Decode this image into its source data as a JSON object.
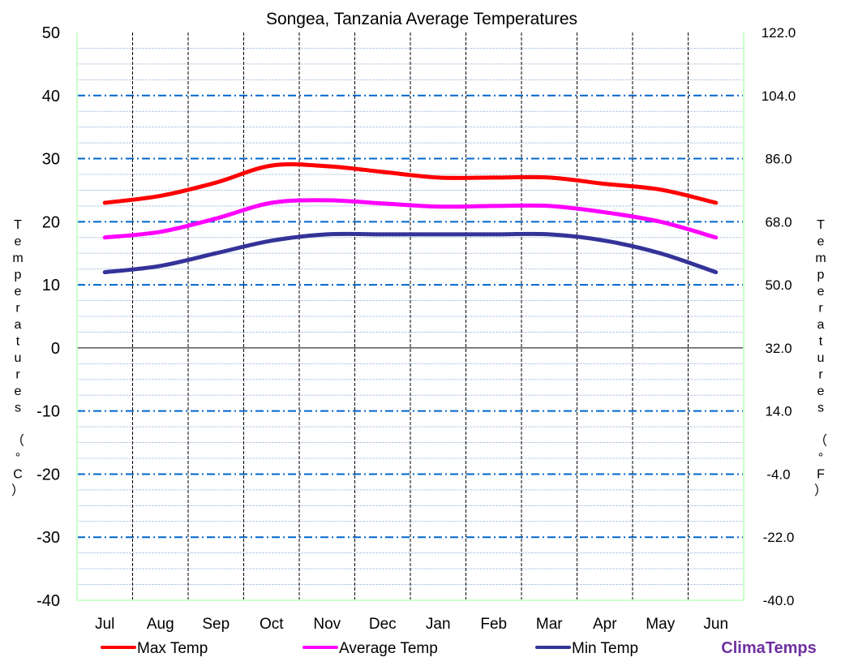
{
  "chart_data": {
    "type": "line",
    "title": "Songea, Tanzania Average Temperatures",
    "categories": [
      "Jul",
      "Aug",
      "Sep",
      "Oct",
      "Nov",
      "Dec",
      "Jan",
      "Feb",
      "Mar",
      "Apr",
      "May",
      "Jun"
    ],
    "series": [
      {
        "name": "Max Temp",
        "color": "#ff0000",
        "values": [
          23,
          24.1,
          26.2,
          28.9,
          28.8,
          27.9,
          27,
          27,
          27,
          26,
          25.1,
          23
        ]
      },
      {
        "name": "Average Temp",
        "color": "#ff00ff",
        "values": [
          17.5,
          18.4,
          20.5,
          23,
          23.4,
          22.9,
          22.4,
          22.5,
          22.5,
          21.5,
          20,
          17.5
        ]
      },
      {
        "name": "Min Temp",
        "color": "#333399",
        "values": [
          12,
          13,
          15,
          17,
          18,
          18,
          18,
          18,
          18,
          17,
          15,
          12
        ]
      }
    ],
    "ylabel_left": "Temperatures (°C)",
    "ylabel_right": "Temperatures (°F)",
    "ylim": [
      -40,
      50
    ],
    "yticks_left": [
      "50",
      "40",
      "30",
      "20",
      "10",
      "0",
      "-10",
      "-20",
      "-30",
      "-40"
    ],
    "yticks_right": [
      "122.0",
      "104.0",
      "86.0",
      "68.0",
      "50.0",
      "32.0",
      "14.0",
      "-4.0",
      "-22.0",
      "-40.0"
    ],
    "grid": true,
    "legend_position": "bottom"
  },
  "brand": "ClimaTemps",
  "brand_color": "#7030a0"
}
